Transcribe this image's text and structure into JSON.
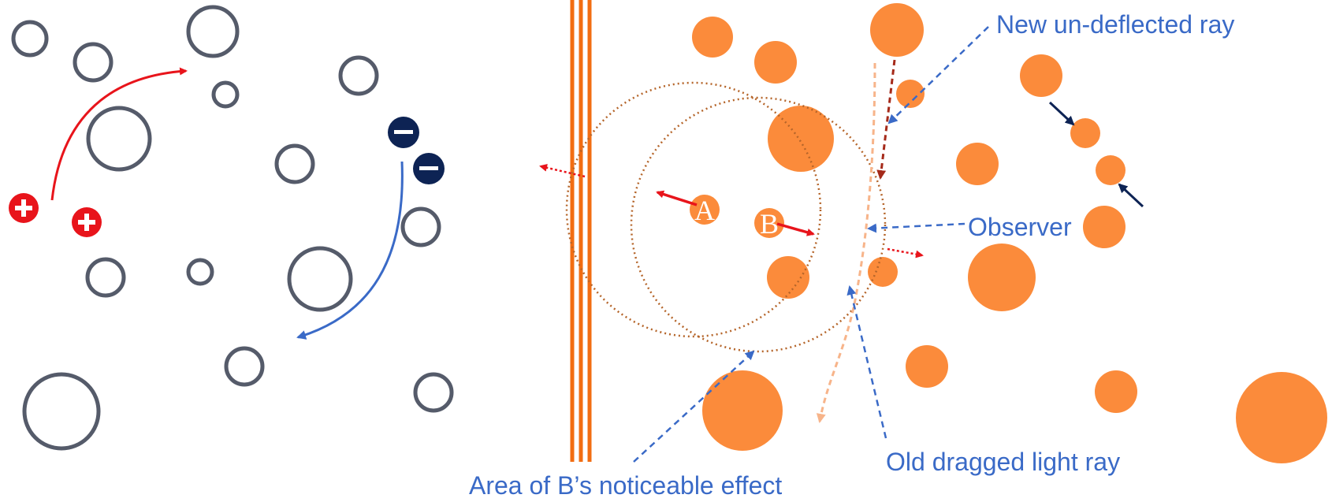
{
  "colors": {
    "ring": "#555b6a",
    "orange": "#fb8b3b",
    "stripe": "#f26d12",
    "red": "#e8141b",
    "navy": "#0d2354",
    "blue_text": "#3a6ac7",
    "blue_line": "#3a6ac7",
    "dark_red": "#a52a1a",
    "light_orange": "#f7b48a",
    "dotted_brown": "#b5652a"
  },
  "labels": {
    "new_ray": "New un-deflected ray",
    "observer": "Observer",
    "old_ray": "Old dragged light ray",
    "area_effect": "Area of B’s noticeable effect"
  },
  "nodes": {
    "a": "A",
    "b": "B"
  },
  "icons": {
    "positive_charge": "plus-circle-icon",
    "negative_charge": "minus-circle-icon"
  }
}
